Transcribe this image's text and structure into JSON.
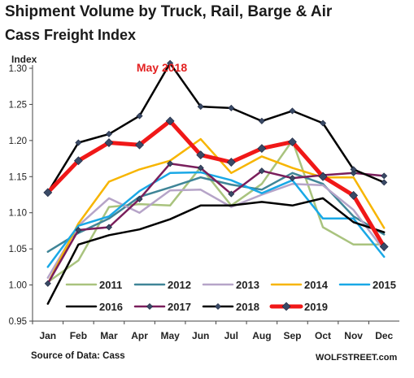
{
  "header": {
    "title": "Shipment Volume by Truck, Rail, Barge & Air",
    "subtitle": "Cass Freight Index"
  },
  "footer": {
    "source": "Source of Data: Cass",
    "credit": "WOLFSTREET.com"
  },
  "chart_data": {
    "type": "line",
    "title": "Shipment Volume by Truck, Rail, Barge & Air",
    "subtitle": "Cass Freight Index",
    "xlabel": "",
    "ylabel": "Index",
    "categories": [
      "Jan",
      "Feb",
      "Mar",
      "Apr",
      "May",
      "Jun",
      "Jul",
      "Aug",
      "Sep",
      "Oct",
      "Nov",
      "Dec"
    ],
    "ylim": [
      0.95,
      1.3
    ],
    "yticks": [
      "0.95",
      "1.00",
      "1.05",
      "1.10",
      "1.15",
      "1.20",
      "1.25",
      "1.30"
    ],
    "grid": false,
    "legend_position": "bottom",
    "annotation": "May 2018",
    "series": [
      {
        "name": "2011",
        "color": "#a9c37e",
        "width": 2.5,
        "marker": false,
        "values": [
          1.004,
          1.034,
          1.108,
          1.112,
          1.11,
          1.163,
          1.11,
          1.14,
          1.2,
          1.08,
          1.056,
          1.056
        ]
      },
      {
        "name": "2012",
        "color": "#3f8597",
        "width": 2.5,
        "marker": false,
        "values": [
          1.046,
          1.072,
          1.092,
          1.122,
          1.135,
          1.149,
          1.139,
          1.132,
          1.155,
          1.14,
          1.095,
          1.07
        ]
      },
      {
        "name": "2013",
        "color": "#b6a4c8",
        "width": 2.5,
        "marker": false,
        "values": [
          1.01,
          1.082,
          1.12,
          1.1,
          1.131,
          1.132,
          1.108,
          1.125,
          1.14,
          1.138,
          1.104,
          1.048
        ]
      },
      {
        "name": "2014",
        "color": "#f7b500",
        "width": 2.5,
        "marker": false,
        "values": [
          1.002,
          1.085,
          1.143,
          1.16,
          1.172,
          1.202,
          1.155,
          1.178,
          1.162,
          1.149,
          1.149,
          1.079
        ]
      },
      {
        "name": "2015",
        "color": "#19a8e6",
        "width": 2.5,
        "marker": false,
        "values": [
          1.025,
          1.082,
          1.095,
          1.13,
          1.155,
          1.156,
          1.145,
          1.127,
          1.145,
          1.092,
          1.092,
          1.039
        ]
      },
      {
        "name": "2016",
        "color": "#000000",
        "width": 2.5,
        "marker": false,
        "values": [
          0.974,
          1.056,
          1.069,
          1.077,
          1.091,
          1.11,
          1.11,
          1.115,
          1.11,
          1.12,
          1.087,
          1.073
        ]
      },
      {
        "name": "2017",
        "color": "#7a1f5c",
        "width": 2.5,
        "marker": true,
        "values": [
          1.002,
          1.076,
          1.08,
          1.119,
          1.168,
          1.162,
          1.126,
          1.158,
          1.148,
          1.152,
          1.155,
          1.151
        ]
      },
      {
        "name": "2018",
        "color": "#000000",
        "width": 2.5,
        "marker": true,
        "values": [
          1.128,
          1.197,
          1.209,
          1.234,
          1.307,
          1.247,
          1.245,
          1.227,
          1.241,
          1.224,
          1.16,
          1.142
        ]
      },
      {
        "name": "2019",
        "color": "#f01818",
        "width": 5,
        "marker": true,
        "values": [
          1.128,
          1.172,
          1.197,
          1.194,
          1.227,
          1.18,
          1.17,
          1.189,
          1.198,
          1.15,
          1.124,
          1.053
        ]
      }
    ]
  }
}
